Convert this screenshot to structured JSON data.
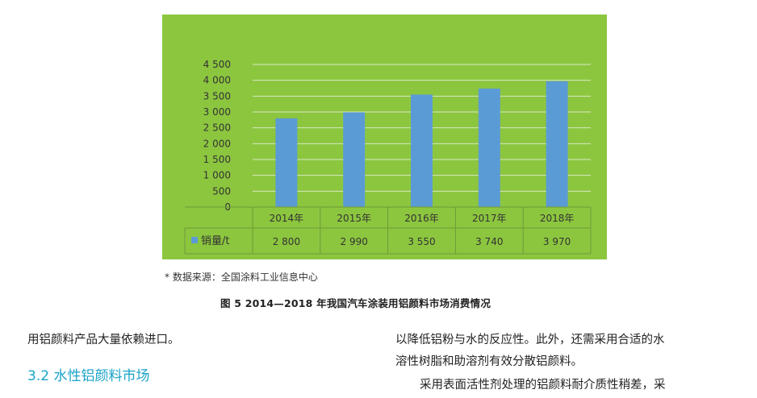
{
  "chart_data": {
    "type": "bar",
    "categories": [
      "2014年",
      "2015年",
      "2016年",
      "2017年",
      "2018年"
    ],
    "series": [
      {
        "name": "销量/t",
        "values": [
          2800,
          2990,
          3550,
          3740,
          3970
        ]
      }
    ],
    "value_labels": [
      "2 800",
      "2 990",
      "3 550",
      "3 740",
      "3 970"
    ],
    "y_ticks": [
      0,
      500,
      1000,
      1500,
      2000,
      2500,
      3000,
      3500,
      4000,
      4500
    ],
    "y_tick_labels": [
      "0",
      "500",
      "1 000",
      "1 500",
      "2 000",
      "2 500",
      "3 000",
      "3 500",
      "4 000",
      "4 500"
    ],
    "ylim": [
      0,
      4500
    ],
    "grid": true,
    "legend": "bottom-left data table",
    "background_color": "#8cc63f",
    "bar_color": "#5b9bd5",
    "grid_color": "#d9e8c4"
  },
  "source_note": "* 数据来源：全国涂料工业信息中心",
  "figure_caption": "图 5 2014—2018 年我国汽车涂装用铝颜料市场消费情况",
  "left_column": {
    "paragraph_tail": "用铝颜料产品大量依赖进口。",
    "section_heading": "3.2 水性铝颜料市场"
  },
  "right_column": {
    "line_1": "以降低铝粉与水的反应性。此外，还需采用合适的水",
    "line_2": "溶性树脂和助溶剂有效分散铝颜料。",
    "line_3": "采用表面活性剂处理的铝颜料耐介质性稍差，采"
  }
}
